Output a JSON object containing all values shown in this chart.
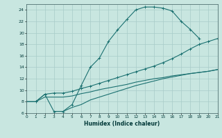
{
  "xlabel": "Humidex (Indice chaleur)",
  "bg_color": "#c8e6e0",
  "grid_color": "#a8ccc8",
  "line_color": "#1a7070",
  "xlim": [
    0,
    21
  ],
  "ylim": [
    6,
    25
  ],
  "xticks": [
    0,
    1,
    2,
    3,
    4,
    5,
    6,
    7,
    8,
    9,
    10,
    11,
    12,
    13,
    14,
    15,
    16,
    17,
    18,
    19,
    20,
    21
  ],
  "yticks": [
    6,
    8,
    10,
    12,
    14,
    16,
    18,
    20,
    22,
    24
  ],
  "line1_x": [
    0,
    1,
    2,
    3,
    4,
    5,
    6,
    7,
    8,
    9,
    10,
    11,
    12,
    13,
    14,
    15,
    16,
    17,
    18,
    19
  ],
  "line1_y": [
    8.0,
    8.0,
    9.3,
    6.3,
    6.3,
    7.5,
    10.8,
    14.0,
    15.6,
    18.5,
    20.5,
    22.3,
    24.0,
    24.5,
    24.5,
    24.3,
    23.8,
    22.0,
    20.6,
    19.0
  ],
  "line2_x": [
    0,
    1,
    2,
    3,
    4,
    5,
    6,
    7,
    8,
    9,
    10,
    11,
    12,
    13,
    14,
    15,
    16,
    17,
    18,
    19,
    20,
    21
  ],
  "line2_y": [
    8.0,
    8.0,
    9.3,
    9.5,
    9.5,
    9.8,
    10.3,
    10.7,
    11.2,
    11.7,
    12.2,
    12.7,
    13.2,
    13.7,
    14.2,
    14.8,
    15.5,
    16.3,
    17.2,
    18.0,
    18.5,
    19.0
  ],
  "line3_x": [
    0,
    1,
    2,
    3,
    4,
    5,
    6,
    7,
    8,
    9,
    10,
    11,
    12,
    13,
    14,
    15,
    16,
    17,
    18,
    19,
    20,
    21
  ],
  "line3_y": [
    8.0,
    8.0,
    8.8,
    8.8,
    8.8,
    9.0,
    9.4,
    9.7,
    10.1,
    10.4,
    10.7,
    11.0,
    11.4,
    11.7,
    12.0,
    12.2,
    12.5,
    12.7,
    12.9,
    13.1,
    13.3,
    13.6
  ],
  "line4_x": [
    3,
    4,
    5,
    6,
    7,
    8,
    9,
    10,
    11,
    12,
    13,
    14,
    15,
    16,
    17,
    18,
    19,
    20,
    21
  ],
  "line4_y": [
    6.3,
    6.3,
    7.0,
    7.5,
    8.3,
    8.8,
    9.3,
    9.8,
    10.3,
    10.8,
    11.2,
    11.6,
    12.0,
    12.3,
    12.6,
    12.9,
    13.1,
    13.3,
    13.6
  ]
}
